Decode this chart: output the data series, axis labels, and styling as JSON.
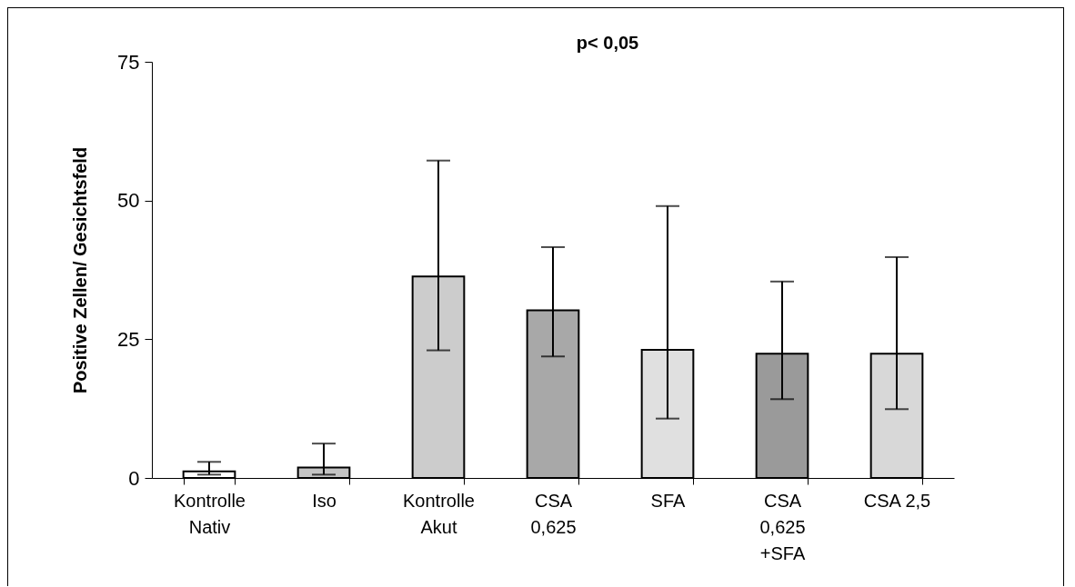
{
  "chart_data": {
    "type": "bar",
    "ylabel": "Positive Zellen/ Gesichtsfeld",
    "categories": [
      "Kontrolle\nNativ",
      "Iso",
      "Kontrolle\nAkut",
      "CSA\n0,625",
      "SFA",
      "CSA\n0,625\n+SFA",
      "CSA 2,5"
    ],
    "values": [
      1.2,
      1.9,
      36.3,
      30.2,
      23.1,
      22.4,
      22.4
    ],
    "errors": [
      [
        0.6,
        2.9
      ],
      [
        0.6,
        6.2
      ],
      [
        23.0,
        57.2
      ],
      [
        21.9,
        41.6
      ],
      [
        10.7,
        49.0
      ],
      [
        14.2,
        35.4
      ],
      [
        12.4,
        39.8
      ]
    ],
    "colors": [
      "#ffffff",
      "#c4c4c4",
      "#cccccc",
      "#a8a8a8",
      "#e0e0e0",
      "#9a9a9a",
      "#d8d8d8"
    ],
    "ylim": [
      0,
      75
    ],
    "yticks": [
      0,
      25,
      50,
      75
    ],
    "grid": false,
    "annotations": [
      "p< 0,05"
    ]
  }
}
